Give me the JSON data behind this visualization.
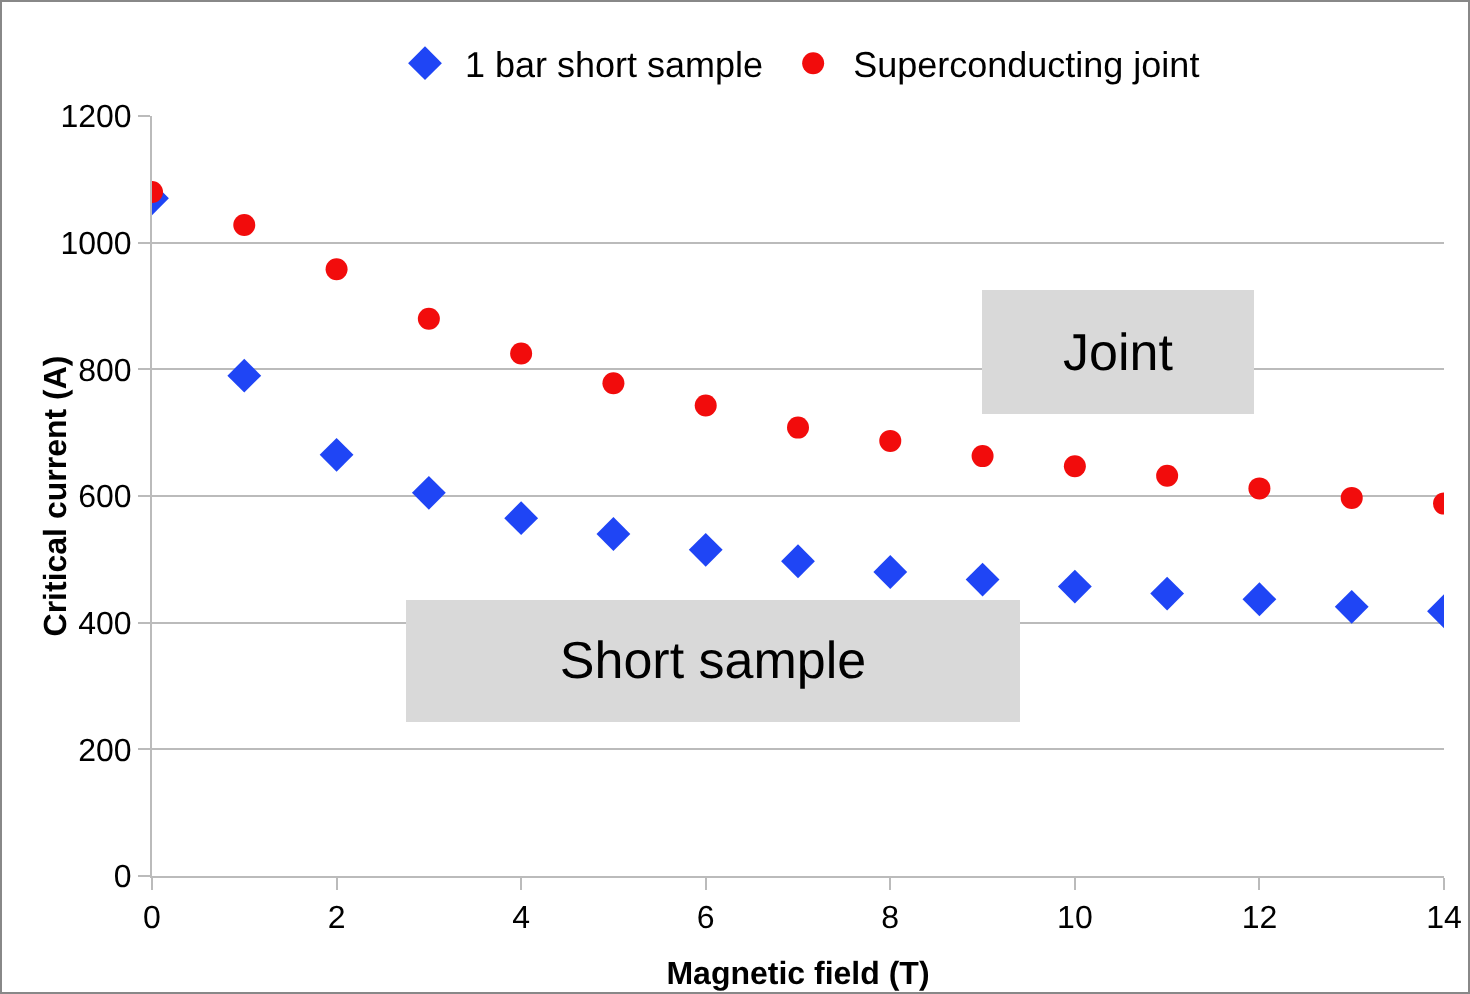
{
  "chart_data": {
    "type": "scatter",
    "xlabel": "Magnetic field (T)",
    "ylabel": "Critical current (A)",
    "x": [
      0,
      1,
      2,
      3,
      4,
      5,
      6,
      7,
      8,
      9,
      10,
      11,
      12,
      13,
      14
    ],
    "series": [
      {
        "name": "1 bar short sample",
        "color": "#1f45f5",
        "marker": "diamond",
        "values": [
          1070,
          790,
          665,
          605,
          565,
          540,
          515,
          497,
          480,
          468,
          457,
          446,
          437,
          425,
          418
        ]
      },
      {
        "name": "Superconducting joint",
        "color": "#f20c0c",
        "marker": "circle",
        "values": [
          1080,
          1028,
          958,
          880,
          825,
          778,
          743,
          708,
          687,
          663,
          647,
          632,
          612,
          597,
          588
        ]
      }
    ],
    "xlim": [
      0,
      14
    ],
    "xticks": [
      0,
      2,
      4,
      6,
      8,
      10,
      12,
      14
    ],
    "ylim": [
      0,
      1200
    ],
    "yticks": [
      0,
      200,
      400,
      600,
      800,
      1000,
      1200
    ],
    "grid": "y",
    "legend": "top",
    "annotations": [
      "Joint",
      "Short sample"
    ]
  }
}
